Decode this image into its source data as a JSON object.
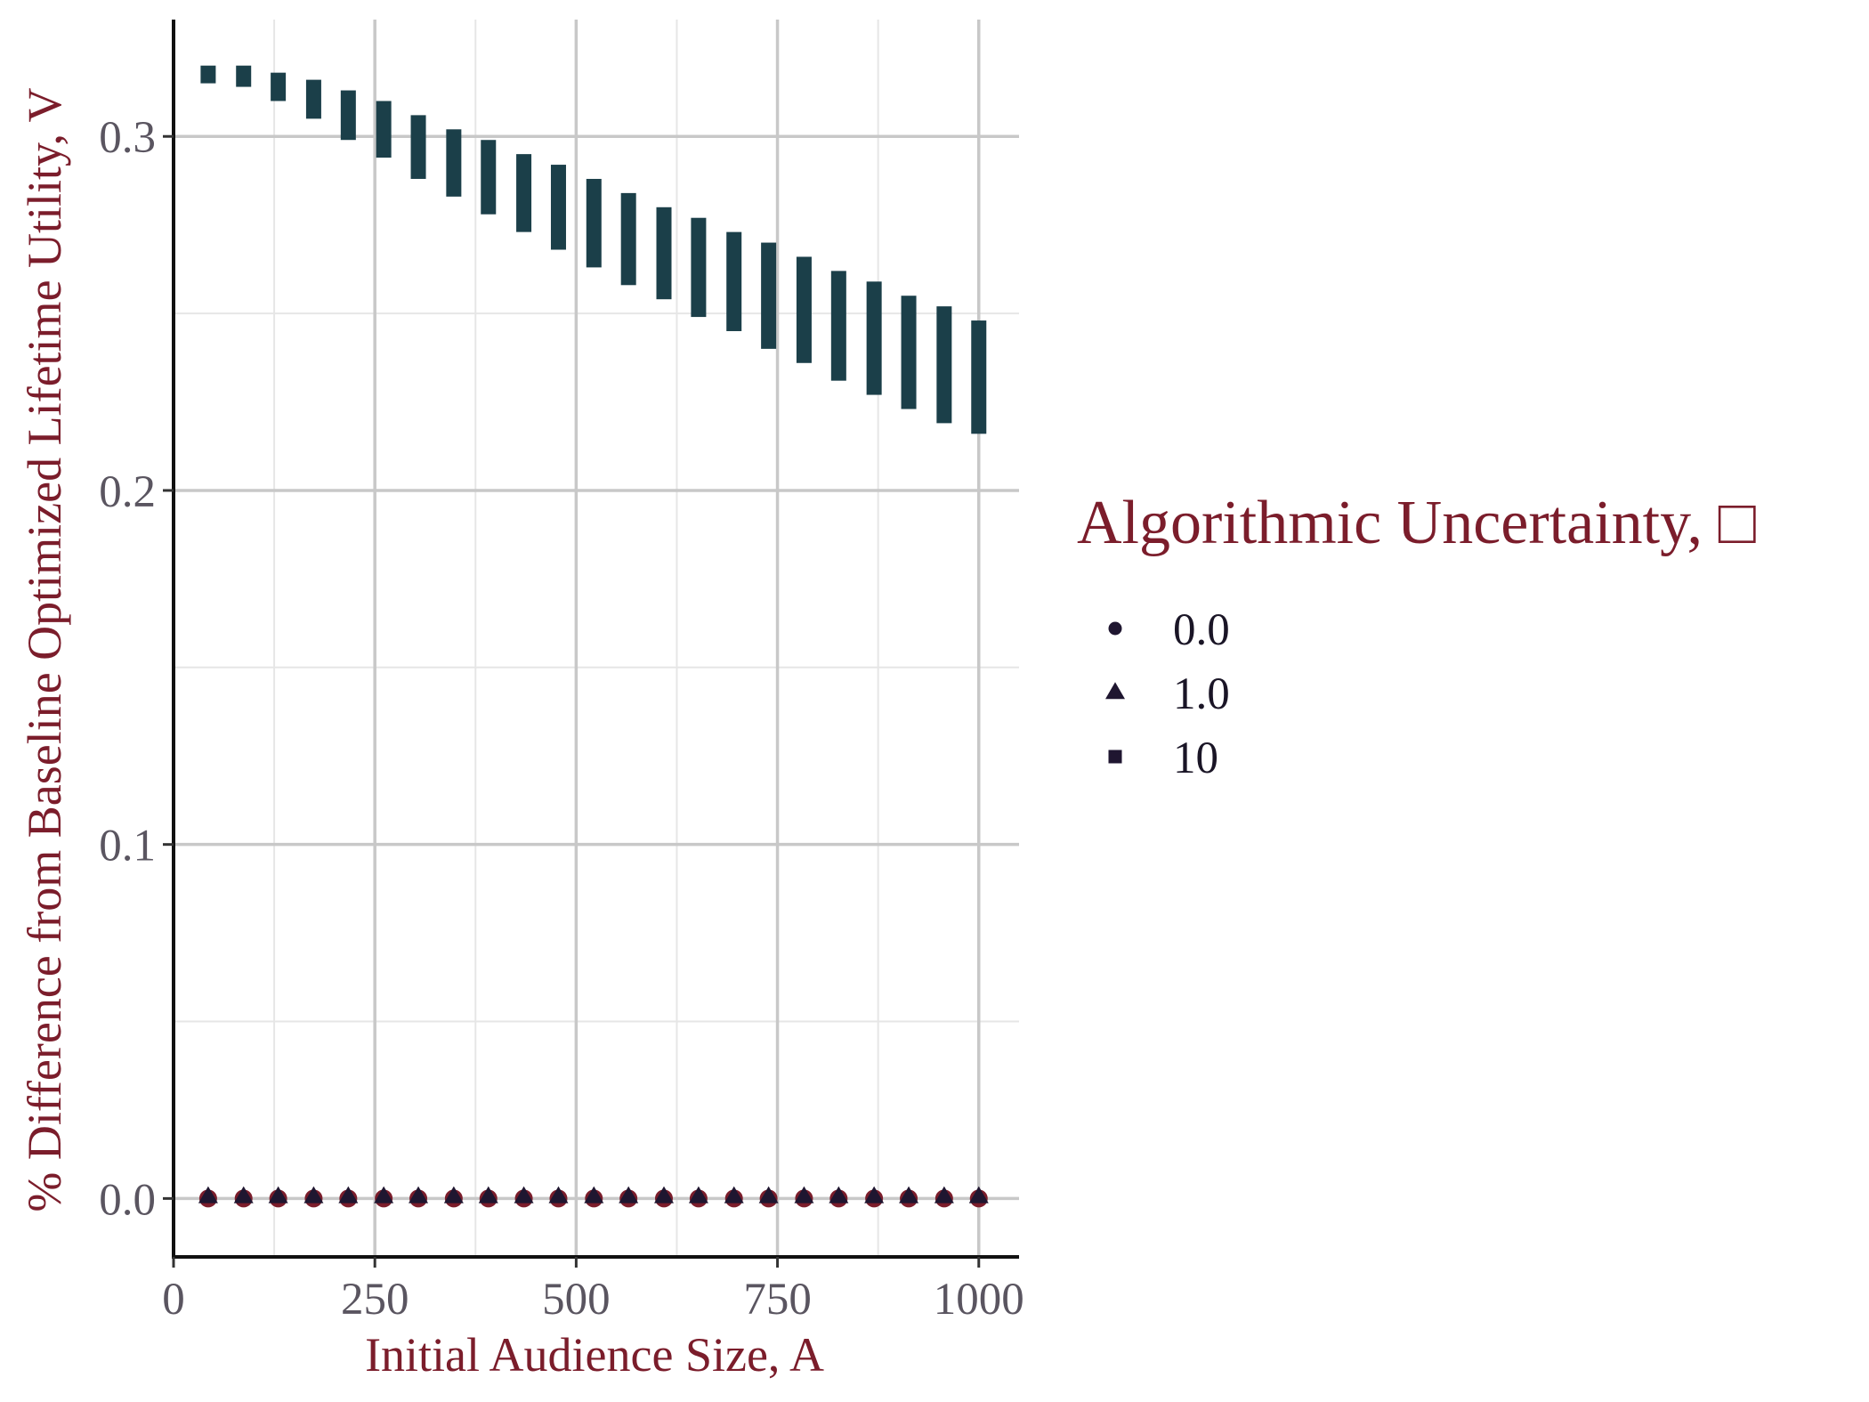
{
  "chart_data": {
    "type": "scatter",
    "xlabel": "Initial Audience Size, A",
    "ylabel": "% Difference from Baseline Optimized Lifetime Utility, V",
    "xlim": [
      0,
      1050
    ],
    "ylim": [
      -0.0165,
      0.333
    ],
    "x_ticks": [
      0,
      250,
      500,
      750,
      1000
    ],
    "x_tick_labels": [
      "0",
      "250",
      "500",
      "750",
      "1000"
    ],
    "y_ticks": [
      0.0,
      0.1,
      0.2,
      0.3
    ],
    "y_tick_labels": [
      "0.0",
      "0.1",
      "0.2",
      "0.3"
    ],
    "grid": true,
    "legend": {
      "title": "Algorithmic Uncertainty, □",
      "position": "right",
      "entries": [
        {
          "label": "0.0",
          "shape": "circle"
        },
        {
          "label": "1.0",
          "shape": "triangle"
        },
        {
          "label": "10",
          "shape": "square"
        }
      ]
    },
    "x": [
      43,
      87,
      130,
      174,
      217,
      261,
      304,
      348,
      391,
      435,
      478,
      522,
      565,
      609,
      652,
      696,
      739,
      783,
      826,
      870,
      913,
      957,
      1000
    ],
    "series": [
      {
        "name": "0.0",
        "shape": "circle",
        "color": "#7b1d2b",
        "y": [
          0,
          0,
          0,
          0,
          0,
          0,
          0,
          0,
          0,
          0,
          0,
          0,
          0,
          0,
          0,
          0,
          0,
          0,
          0,
          0,
          0,
          0,
          0
        ]
      },
      {
        "name": "1.0",
        "shape": "triangle",
        "color": "#1f1630",
        "y": [
          0,
          0,
          0,
          0,
          0,
          0,
          0,
          0,
          0,
          0,
          0,
          0,
          0,
          0,
          0,
          0,
          0,
          0,
          0,
          0,
          0,
          0,
          0
        ]
      },
      {
        "name": "10",
        "shape": "square",
        "color": "#1b3f49",
        "y_low": [
          0.315,
          0.314,
          0.31,
          0.305,
          0.299,
          0.294,
          0.288,
          0.283,
          0.278,
          0.273,
          0.268,
          0.263,
          0.258,
          0.254,
          0.249,
          0.245,
          0.24,
          0.236,
          0.231,
          0.227,
          0.223,
          0.219,
          0.216
        ],
        "y_high": [
          0.32,
          0.32,
          0.318,
          0.316,
          0.313,
          0.31,
          0.306,
          0.302,
          0.299,
          0.295,
          0.292,
          0.288,
          0.284,
          0.28,
          0.277,
          0.273,
          0.27,
          0.266,
          0.262,
          0.259,
          0.255,
          0.252,
          0.248
        ]
      }
    ]
  }
}
